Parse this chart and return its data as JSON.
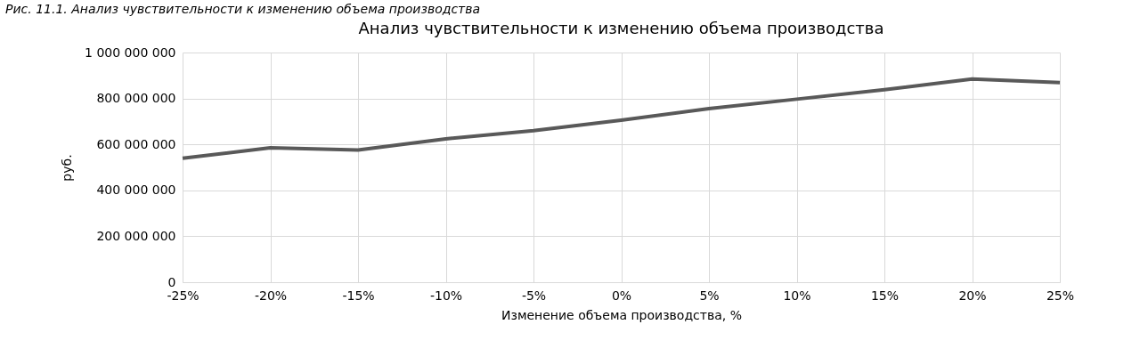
{
  "chart_data": {
    "type": "line",
    "title": "Анализ чувствительности к изменению объема производства",
    "annotations": [
      "Рис. 11.1. Анализ чувствительности к изменению объема производства"
    ],
    "xlabel": "Изменение объема производства, %",
    "ylabel": "руб.",
    "categories": [
      "-25%",
      "-20%",
      "-15%",
      "-10%",
      "-5%",
      "0%",
      "5%",
      "10%",
      "15%",
      "20%",
      "25%"
    ],
    "series": [
      {
        "color": "#595959",
        "values": [
          540000000,
          585000000,
          576000000,
          624000000,
          660000000,
          705000000,
          756000000,
          797000000,
          838000000,
          885000000,
          869000000
        ]
      }
    ],
    "ylim": [
      0,
      1000000000
    ],
    "yticks": [
      0,
      {
        "value": 200000000,
        "label": "200 000 000"
      },
      {
        "value": 400000000,
        "label": "400 000 000"
      },
      {
        "value": 600000000,
        "label": "600 000 000"
      },
      {
        "value": 800000000,
        "label": "800 000 000"
      },
      {
        "value": 1000000000,
        "label": "1 000 000 000"
      }
    ],
    "grid": true,
    "marker": "none",
    "line_style": "solid"
  }
}
